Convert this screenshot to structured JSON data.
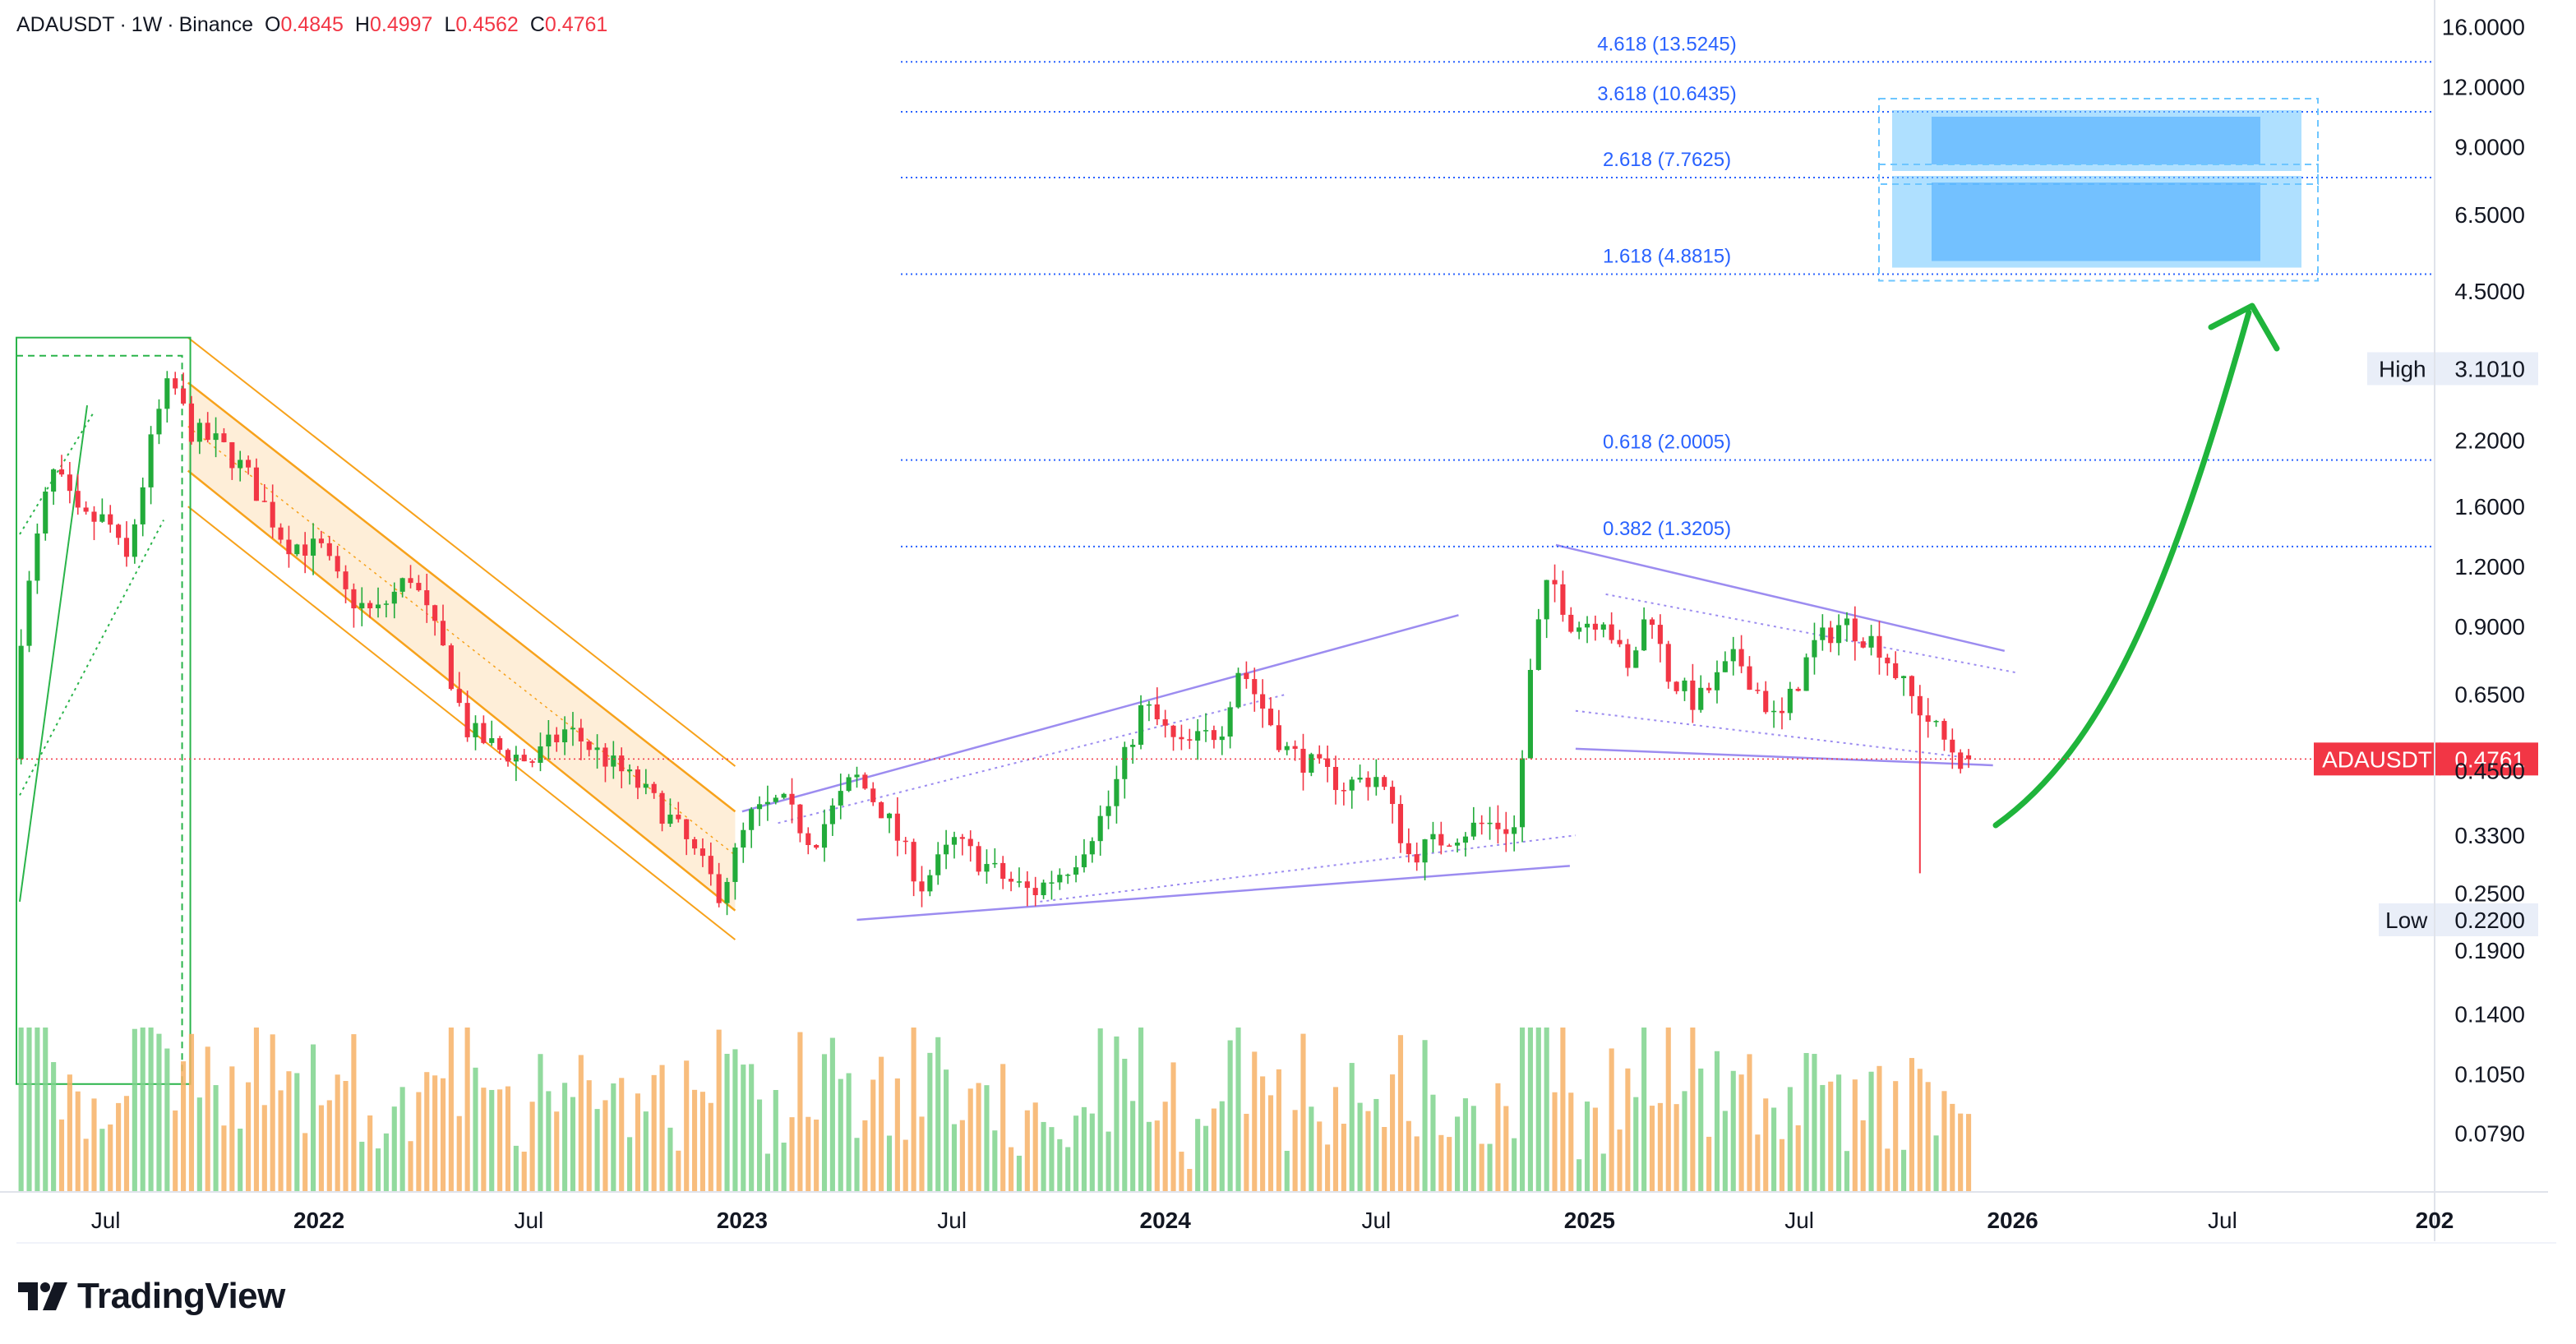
{
  "header": {
    "symbol": "ADAUSDT",
    "interval": "1W",
    "exchange": "Binance",
    "separator": "·",
    "open_label": "O",
    "open": "0.4845",
    "high_label": "H",
    "high": "0.4997",
    "low_label": "L",
    "low": "0.4562",
    "close_label": "C",
    "close": "0.4761"
  },
  "colors": {
    "up": "#089981",
    "up_candle": "#22ab3a",
    "down": "#f23645",
    "fib_line": "#2962ff",
    "channel": "#f7a21b",
    "triangle": "#9c8cf0",
    "arrow": "#1fb43b",
    "price_label_bg": "#f23645",
    "target_box": "#6ec6ff"
  },
  "price_axis": {
    "scale": "log",
    "ticks": [
      "16.0000",
      "12.0000",
      "9.0000",
      "6.5000",
      "4.5000",
      "2.2000",
      "1.6000",
      "1.2000",
      "0.9000",
      "0.6500",
      "0.4500",
      "0.3300",
      "0.2500",
      "0.1900",
      "0.1400",
      "0.1050",
      "0.0790"
    ],
    "high_label": "High",
    "high_value": "3.1010",
    "low_label": "Low",
    "low_value": "0.2200",
    "current_symbol": "ADAUSDT",
    "current_value": "0.4761"
  },
  "time_axis": {
    "ticks": [
      {
        "label": "Jul",
        "year": false
      },
      {
        "label": "2022",
        "year": true
      },
      {
        "label": "Jul",
        "year": false
      },
      {
        "label": "2023",
        "year": true
      },
      {
        "label": "Jul",
        "year": false
      },
      {
        "label": "2024",
        "year": true
      },
      {
        "label": "Jul",
        "year": false
      },
      {
        "label": "2025",
        "year": true
      },
      {
        "label": "Jul",
        "year": false
      },
      {
        "label": "2026",
        "year": true
      },
      {
        "label": "Jul",
        "year": false
      },
      {
        "label": "202",
        "year": true
      }
    ]
  },
  "fib_levels": [
    {
      "label": "4.618 (13.5245)",
      "price": 13.5245
    },
    {
      "label": "3.618 (10.6435)",
      "price": 10.6435
    },
    {
      "label": "2.618 (7.7625)",
      "price": 7.7625
    },
    {
      "label": "1.618 (4.8815)",
      "price": 4.8815
    },
    {
      "label": "0.618 (2.0005)",
      "price": 2.0005
    },
    {
      "label": "0.382 (1.3205)",
      "price": 1.3205
    }
  ],
  "brand": {
    "name": "TradingView"
  },
  "chart_data": {
    "type": "candlestick",
    "symbol": "ADAUSDT",
    "interval": "1W",
    "scale": "log",
    "ylim": [
      0.072,
      17.5
    ],
    "xlim": [
      "2021-04",
      "2026-12"
    ],
    "grid": false,
    "last": {
      "open": 0.4845,
      "high": 0.4997,
      "low": 0.4562,
      "close": 0.4761
    },
    "period_high": 3.101,
    "period_low": 0.22,
    "fib_levels": [
      13.5245,
      10.6435,
      7.7625,
      4.8815,
      2.0005,
      1.3205
    ],
    "target_zones": [
      [
        7.7625,
        10.6435
      ],
      [
        4.8815,
        7.7625
      ]
    ],
    "price_path": [
      [
        "2021-04-20",
        0.72
      ],
      [
        "2021-05-15",
        1.6
      ],
      [
        "2021-05-25",
        1.9
      ],
      [
        "2021-06-15",
        1.5
      ],
      [
        "2021-07-10",
        1.5
      ],
      [
        "2021-07-25",
        1.2
      ],
      [
        "2021-08-20",
        2.4
      ],
      [
        "2021-09-02",
        2.95
      ],
      [
        "2021-09-20",
        2.3
      ],
      [
        "2021-10-15",
        2.15
      ],
      [
        "2021-11-05",
        1.9
      ],
      [
        "2021-12-10",
        1.35
      ],
      [
        "2022-01-10",
        1.3
      ],
      [
        "2022-01-30",
        1.05
      ],
      [
        "2022-02-25",
        0.95
      ],
      [
        "2022-03-28",
        1.15
      ],
      [
        "2022-04-25",
        0.8
      ],
      [
        "2022-05-15",
        0.55
      ],
      [
        "2022-06-10",
        0.5
      ],
      [
        "2022-07-10",
        0.47
      ],
      [
        "2022-08-10",
        0.55
      ],
      [
        "2022-09-10",
        0.48
      ],
      [
        "2022-10-10",
        0.42
      ],
      [
        "2022-11-10",
        0.35
      ],
      [
        "2022-12-20",
        0.25
      ],
      [
        "2023-01-15",
        0.36
      ],
      [
        "2023-02-10",
        0.39
      ],
      [
        "2023-03-10",
        0.32
      ],
      [
        "2023-04-15",
        0.44
      ],
      [
        "2023-05-10",
        0.37
      ],
      [
        "2023-06-12",
        0.26
      ],
      [
        "2023-07-10",
        0.32
      ],
      [
        "2023-08-20",
        0.27
      ],
      [
        "2023-09-15",
        0.25
      ],
      [
        "2023-10-20",
        0.29
      ],
      [
        "2023-11-20",
        0.38
      ],
      [
        "2023-12-20",
        0.62
      ],
      [
        "2024-01-20",
        0.5
      ],
      [
        "2024-02-25",
        0.55
      ],
      [
        "2024-03-12",
        0.75
      ],
      [
        "2024-04-20",
        0.5
      ],
      [
        "2024-06-10",
        0.42
      ],
      [
        "2024-07-10",
        0.44
      ],
      [
        "2024-08-05",
        0.3
      ],
      [
        "2024-09-10",
        0.33
      ],
      [
        "2024-10-10",
        0.35
      ],
      [
        "2024-11-05",
        0.34
      ],
      [
        "2024-11-20",
        0.8
      ],
      [
        "2024-12-05",
        1.15
      ],
      [
        "2024-12-25",
        0.9
      ],
      [
        "2025-01-20",
        0.95
      ],
      [
        "2025-02-10",
        0.72
      ],
      [
        "2025-03-01",
        1.0
      ],
      [
        "2025-03-15",
        0.72
      ],
      [
        "2025-04-10",
        0.62
      ],
      [
        "2025-05-15",
        0.78
      ],
      [
        "2025-06-20",
        0.56
      ],
      [
        "2025-07-20",
        0.82
      ],
      [
        "2025-08-15",
        0.92
      ],
      [
        "2025-09-15",
        0.82
      ],
      [
        "2025-10-10",
        0.65
      ],
      [
        "2025-11-10",
        0.52
      ],
      [
        "2025-11-24",
        0.4761
      ]
    ]
  }
}
